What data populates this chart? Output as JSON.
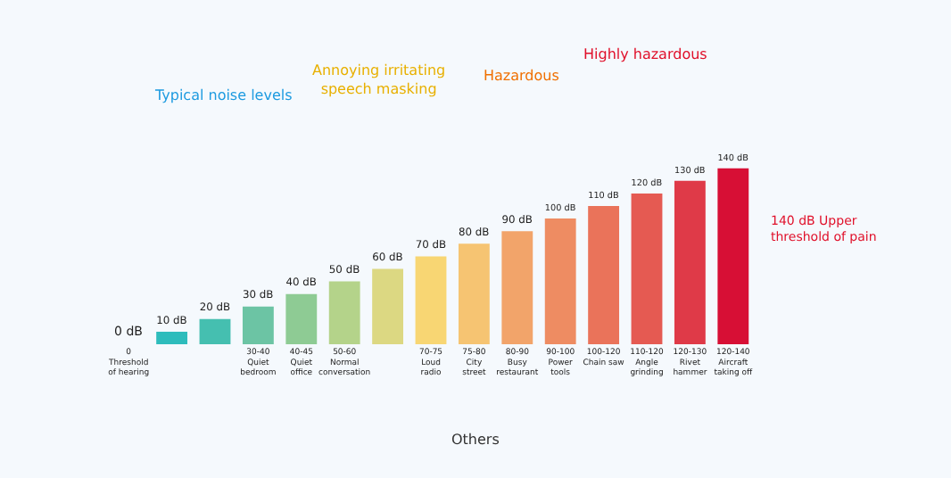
{
  "chart_data": {
    "type": "bar",
    "categories": [
      "0\nThreshold\nof hearing",
      null,
      null,
      "30-40\nQuiet\nbedroom",
      "40-45\nQuiet\noffice",
      "50-60\nNormal\nconversation",
      null,
      "70-75\nLoud\nradio",
      "75-80\nCity\nstreet",
      "80-90\nBusy\nrestaurant",
      "90-100\nPower\ntools",
      "100-120\nChain saw",
      "110-120\nAngle\ngrinding",
      "120-130\nRivet\nhammer",
      "120-140\nAircraft\ntaking off"
    ],
    "values": [
      0,
      10,
      20,
      30,
      40,
      50,
      60,
      70,
      80,
      90,
      100,
      110,
      120,
      130,
      140
    ],
    "value_labels": [
      "0 dB",
      "10 dB",
      "20 dB",
      "30 dB",
      "40 dB",
      "50 dB",
      "60 dB",
      "70 dB",
      "80 dB",
      "90 dB",
      "100 dB",
      "110 dB",
      "120 dB",
      "130 dB",
      "140 dB"
    ],
    "colors": [
      "#12b3c4",
      "#2ebcbc",
      "#45bfb0",
      "#6cc4a4",
      "#8ecb94",
      "#b4d38a",
      "#dcd882",
      "#f8d673",
      "#f6c472",
      "#f2a46a",
      "#ee8c62",
      "#ea735a",
      "#e55a52",
      "#df3a48",
      "#d70f35"
    ],
    "annotations": [
      "Typical noise levels",
      "Annoying irritating\nspeech masking",
      "Hazardous",
      "Highly hazardous",
      "140 dB Upper\nthreshold of pain",
      "Others"
    ]
  }
}
